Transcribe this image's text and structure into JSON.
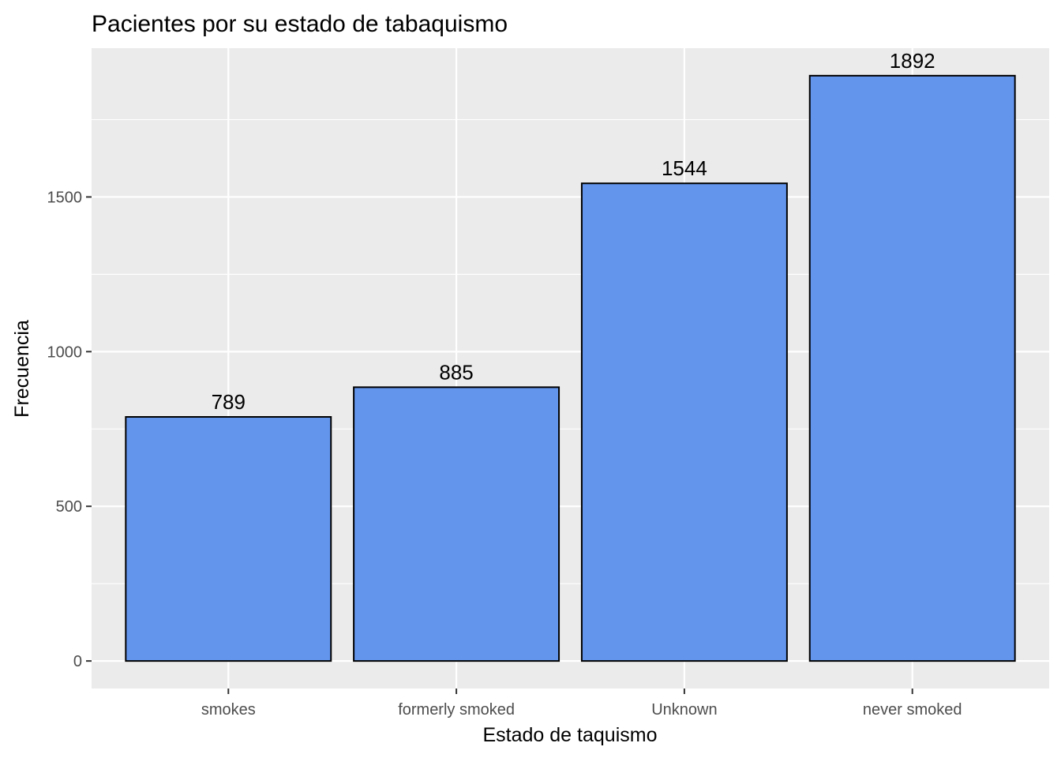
{
  "chart_data": {
    "type": "bar",
    "title": "Pacientes por su estado de tabaquismo",
    "xlabel": "Estado de taquismo",
    "ylabel": "Frecuencia",
    "categories": [
      "smokes",
      "formerly smoked",
      "Unknown",
      "never smoked"
    ],
    "values": [
      789,
      885,
      1544,
      1892
    ],
    "data_labels": [
      "789",
      "885",
      "1544",
      "1892"
    ],
    "ylim": [
      -89,
      1981
    ],
    "yticks": [
      0,
      500,
      1000,
      1500
    ],
    "ytick_labels": [
      "0",
      "500",
      "1000",
      "1500"
    ],
    "grid": true,
    "legend": "none",
    "colors": {
      "bar_fill": "#6495ED",
      "bar_stroke": "#000000",
      "panel_background": "#EBEBEB",
      "grid_line": "#FFFFFF"
    }
  }
}
